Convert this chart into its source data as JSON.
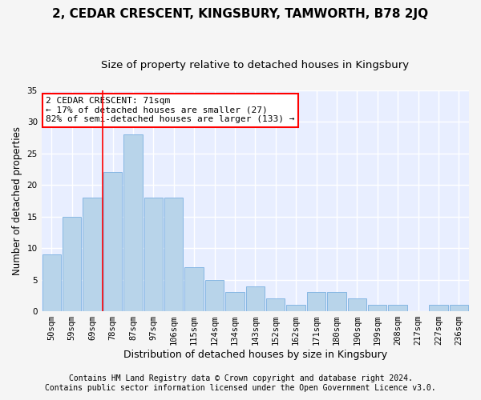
{
  "title": "2, CEDAR CRESCENT, KINGSBURY, TAMWORTH, B78 2JQ",
  "subtitle": "Size of property relative to detached houses in Kingsbury",
  "xlabel": "Distribution of detached houses by size in Kingsbury",
  "ylabel": "Number of detached properties",
  "categories": [
    "50sqm",
    "59sqm",
    "69sqm",
    "78sqm",
    "87sqm",
    "97sqm",
    "106sqm",
    "115sqm",
    "124sqm",
    "134sqm",
    "143sqm",
    "152sqm",
    "162sqm",
    "171sqm",
    "180sqm",
    "190sqm",
    "199sqm",
    "208sqm",
    "217sqm",
    "227sqm",
    "236sqm"
  ],
  "values": [
    9,
    15,
    18,
    22,
    28,
    18,
    18,
    7,
    5,
    3,
    4,
    2,
    1,
    3,
    3,
    2,
    1,
    1,
    0,
    1,
    1
  ],
  "bar_color": "#b8d4ea",
  "bar_edge_color": "#7aafe0",
  "red_line_x": 2.5,
  "annotation_text_line1": "2 CEDAR CRESCENT: 71sqm",
  "annotation_text_line2": "← 17% of detached houses are smaller (27)",
  "annotation_text_line3": "82% of semi-detached houses are larger (133) →",
  "ylim": [
    0,
    35
  ],
  "yticks": [
    0,
    5,
    10,
    15,
    20,
    25,
    30,
    35
  ],
  "footer_line1": "Contains HM Land Registry data © Crown copyright and database right 2024.",
  "footer_line2": "Contains public sector information licensed under the Open Government Licence v3.0.",
  "plot_bg_color": "#e8eeff",
  "fig_bg_color": "#f5f5f5",
  "grid_color": "#ffffff",
  "title_fontsize": 11,
  "subtitle_fontsize": 9.5,
  "ylabel_fontsize": 8.5,
  "xlabel_fontsize": 9,
  "tick_fontsize": 7.5,
  "footer_fontsize": 7,
  "annot_fontsize": 8
}
